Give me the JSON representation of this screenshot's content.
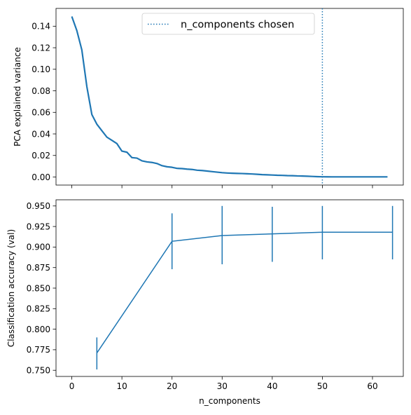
{
  "colors": {
    "series": "#1f77b4",
    "axis": "#000000",
    "legend_border": "#cccccc"
  },
  "chart_data": [
    {
      "type": "line",
      "panel": "top",
      "xlabel": "",
      "ylabel": "PCA explained variance",
      "xlim": [
        -3.15,
        66.15
      ],
      "ylim": [
        -0.0075,
        0.1565
      ],
      "x_ticks": [
        0,
        10,
        20,
        30,
        40,
        50,
        60
      ],
      "x_tick_labels_visible": false,
      "y_ticks": [
        0.0,
        0.02,
        0.04,
        0.06,
        0.08,
        0.1,
        0.12,
        0.14
      ],
      "y_tick_labels": [
        "0.00",
        "0.02",
        "0.04",
        "0.06",
        "0.08",
        "0.10",
        "0.12",
        "0.14"
      ],
      "series": [
        {
          "x": [
            0,
            1,
            2,
            3,
            4,
            5,
            6,
            7,
            8,
            9,
            10,
            11,
            12,
            13,
            14,
            15,
            16,
            17,
            18,
            19,
            20,
            21,
            22,
            23,
            24,
            25,
            26,
            27,
            28,
            29,
            30,
            31,
            32,
            33,
            34,
            35,
            36,
            37,
            38,
            39,
            40,
            41,
            42,
            43,
            44,
            45,
            46,
            47,
            48,
            49,
            50,
            51,
            52,
            53,
            54,
            55,
            56,
            57,
            58,
            59,
            60,
            61,
            62,
            63
          ],
          "values": [
            0.149,
            0.136,
            0.118,
            0.084,
            0.058,
            0.049,
            0.043,
            0.037,
            0.034,
            0.031,
            0.024,
            0.023,
            0.018,
            0.0175,
            0.015,
            0.014,
            0.0135,
            0.0125,
            0.0105,
            0.0095,
            0.009,
            0.008,
            0.0078,
            0.0073,
            0.007,
            0.0063,
            0.006,
            0.0055,
            0.005,
            0.0045,
            0.004,
            0.0037,
            0.0035,
            0.0033,
            0.0032,
            0.003,
            0.0028,
            0.0025,
            0.0022,
            0.002,
            0.0018,
            0.0016,
            0.0015,
            0.0013,
            0.0012,
            0.001,
            0.0009,
            0.0007,
            0.0005,
            0.0003,
            0.0002,
            0.00015,
            0.0001,
            0.0001,
            0.0001,
            0.0001,
            0.0001,
            0.0001,
            0.0001,
            0.0001,
            0.0001,
            0.0001,
            0.0001,
            0.0001
          ]
        }
      ],
      "vline": {
        "x": 50,
        "style": "dotted",
        "label": "n_components chosen"
      },
      "legend": {
        "entries": [
          "n_components chosen"
        ],
        "placement": "upper-center"
      },
      "grid": false
    },
    {
      "type": "line",
      "panel": "bottom",
      "xlabel": "n_components",
      "ylabel": "Classification accuracy (val)",
      "xlim": [
        -3.15,
        66.15
      ],
      "ylim": [
        0.7425,
        0.9575
      ],
      "x_ticks": [
        0,
        10,
        20,
        30,
        40,
        50,
        60
      ],
      "x_tick_labels": [
        "0",
        "10",
        "20",
        "30",
        "40",
        "50",
        "60"
      ],
      "y_ticks": [
        0.75,
        0.775,
        0.8,
        0.825,
        0.85,
        0.875,
        0.9,
        0.925,
        0.95
      ],
      "y_tick_labels": [
        "0.750",
        "0.775",
        "0.800",
        "0.825",
        "0.850",
        "0.875",
        "0.900",
        "0.925",
        "0.950"
      ],
      "series": [
        {
          "x": [
            5,
            20,
            30,
            40,
            50,
            64
          ],
          "values": [
            0.771,
            0.907,
            0.914,
            0.916,
            0.918,
            0.918
          ],
          "error_low": [
            0.751,
            0.873,
            0.879,
            0.882,
            0.885,
            0.885
          ],
          "error_high": [
            0.79,
            0.941,
            0.95,
            0.949,
            0.95,
            0.95
          ]
        }
      ],
      "grid": false
    }
  ]
}
